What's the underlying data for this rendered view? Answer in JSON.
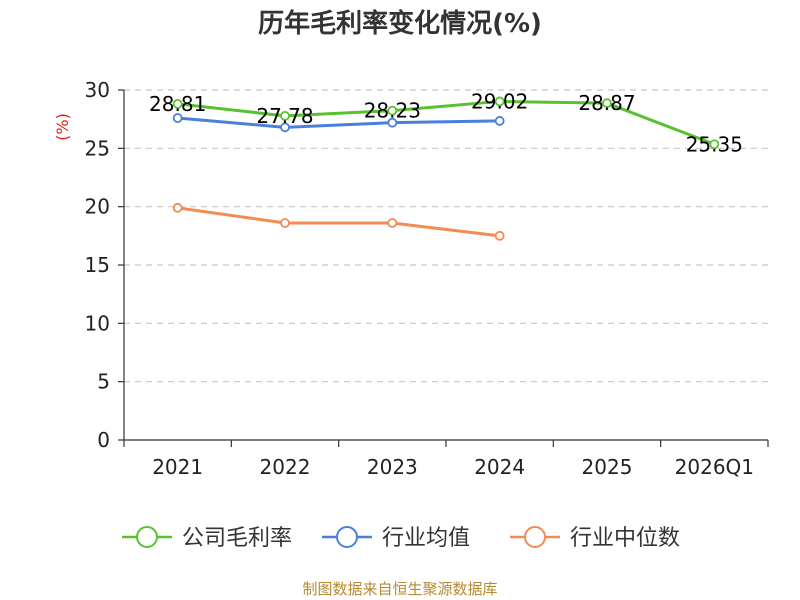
{
  "chart_data": {
    "type": "line",
    "title": "历年毛利率变化情况(%)",
    "ylabel": "(%)",
    "categories": [
      "2021",
      "2022",
      "2023",
      "2024",
      "2025",
      "2026Q1"
    ],
    "ylim": [
      0,
      30
    ],
    "yticks": [
      0,
      5,
      10,
      15,
      20,
      25,
      30
    ],
    "grid": true,
    "legend_position": "bottom",
    "series": [
      {
        "name": "公司毛利率",
        "color": "#5ac12e",
        "values": [
          28.81,
          27.78,
          28.23,
          29.02,
          28.87,
          25.35
        ],
        "labels": [
          "28.81",
          "27.78",
          "28.23",
          "29.02",
          "28.87",
          "25.35"
        ]
      },
      {
        "name": "行业均值",
        "color": "#4a7fdc",
        "values": [
          27.6,
          26.8,
          27.2,
          27.35,
          null,
          null
        ]
      },
      {
        "name": "行业中位数",
        "color": "#f28b54",
        "values": [
          19.9,
          18.6,
          18.6,
          17.5,
          null,
          null
        ]
      }
    ]
  },
  "source": "制图数据来自恒生聚源数据库"
}
